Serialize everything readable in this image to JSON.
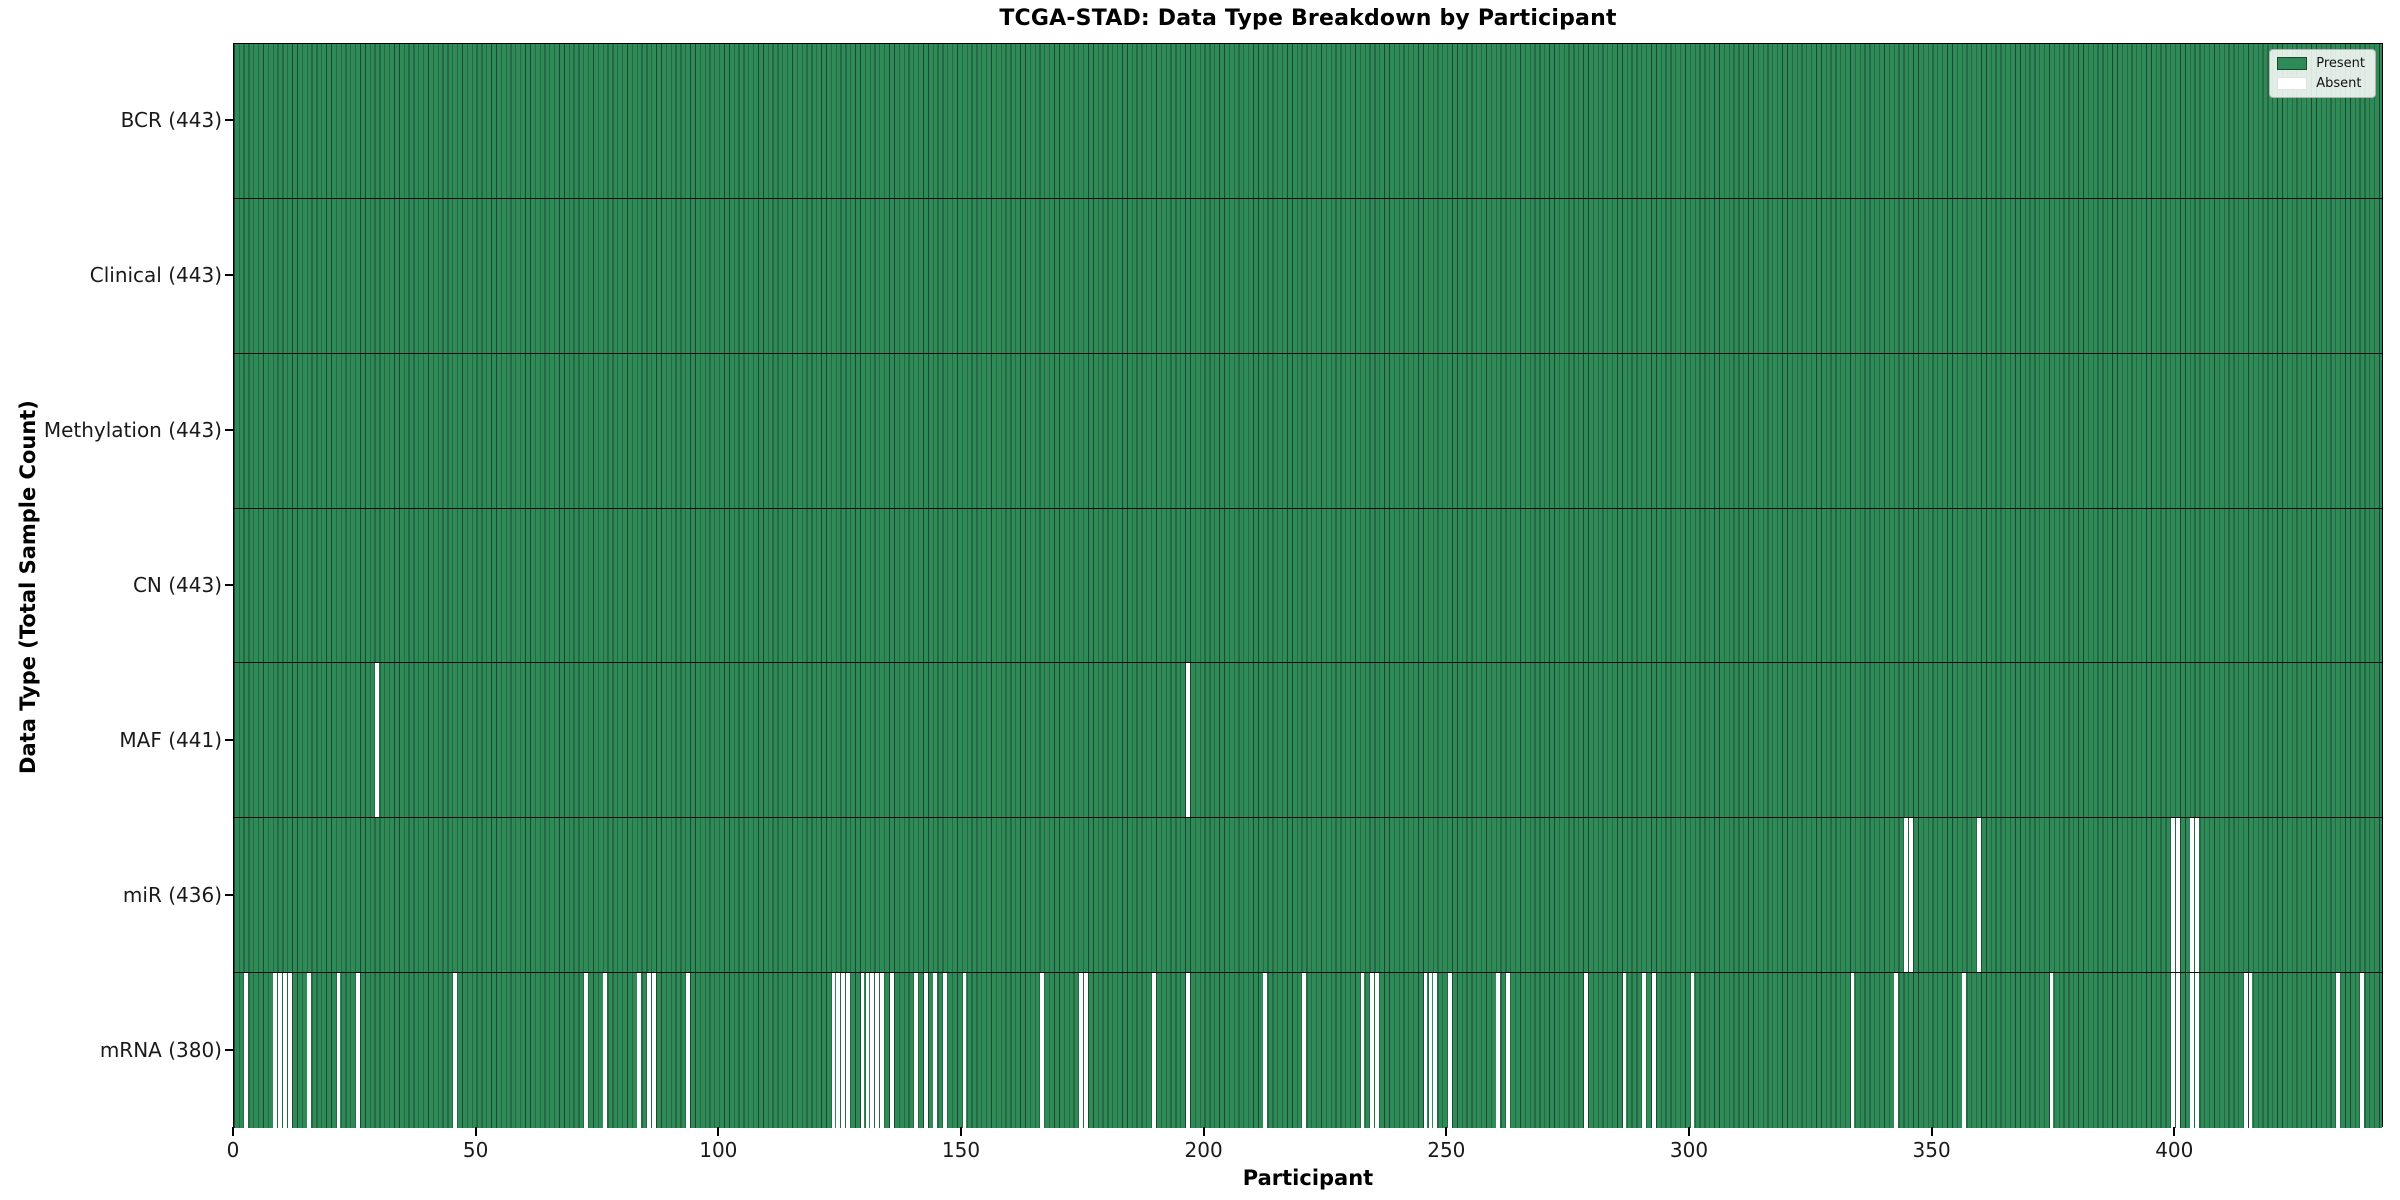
{
  "title": "TCGA-STAD: Data Type Breakdown by Participant",
  "xlabel": "Participant",
  "ylabel": "Data Type (Total Sample Count)",
  "legend": {
    "present_label": "Present",
    "absent_label": "Absent"
  },
  "colors": {
    "present": "#2e8b57",
    "absent": "#ffffff",
    "bar_edge": "#1d4631",
    "row_divider": "#0a0a0a",
    "axis": "#000000"
  },
  "chart_data": {
    "type": "heatmap",
    "title": "TCGA-STAD: Data Type Breakdown by Participant",
    "xlabel": "Participant",
    "ylabel": "Data Type (Total Sample Count)",
    "x_range": [
      0,
      443
    ],
    "x_ticks": [
      0,
      50,
      100,
      150,
      200,
      250,
      300,
      350,
      400
    ],
    "grid": false,
    "legend_entries": [
      "Present",
      "Absent"
    ],
    "legend_position": "upper right",
    "cell_values": "1 = present (green), 0 = absent (white); 443 participants per row",
    "rows": [
      {
        "name": "BCR",
        "label": "BCR (443)",
        "total": 443,
        "absent_participants": []
      },
      {
        "name": "Clinical",
        "label": "Clinical (443)",
        "total": 443,
        "absent_participants": []
      },
      {
        "name": "Methylation",
        "label": "Methylation (443)",
        "total": 443,
        "absent_participants": []
      },
      {
        "name": "CN",
        "label": "CN (443)",
        "total": 443,
        "absent_participants": []
      },
      {
        "name": "MAF",
        "label": "MAF (441)",
        "total": 441,
        "absent_participants": [
          29,
          196
        ]
      },
      {
        "name": "miR",
        "label": "miR (436)",
        "total": 436,
        "absent_participants": [
          344,
          345,
          359,
          399,
          400,
          403,
          404
        ]
      },
      {
        "name": "mRNA",
        "label": "mRNA (380)",
        "total": 380,
        "absent_participants": [
          2,
          8,
          9,
          10,
          11,
          15,
          21,
          25,
          45,
          72,
          76,
          83,
          85,
          86,
          93,
          123,
          124,
          125,
          126,
          129,
          130,
          131,
          132,
          133,
          135,
          140,
          142,
          144,
          146,
          150,
          166,
          174,
          175,
          189,
          196,
          212,
          220,
          232,
          234,
          235,
          245,
          246,
          247,
          250,
          260,
          262,
          278,
          286,
          290,
          292,
          300,
          333,
          342,
          356,
          374,
          399,
          400,
          403,
          404,
          414,
          415,
          433,
          438
        ]
      }
    ]
  }
}
